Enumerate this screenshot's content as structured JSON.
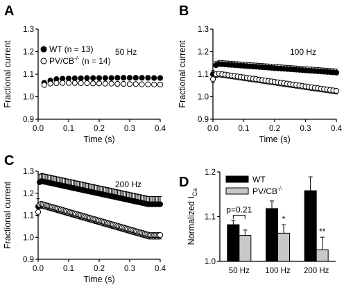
{
  "figure": {
    "background": "#ffffff",
    "panel_letters": [
      "A",
      "B",
      "C",
      "D"
    ]
  },
  "chart_data": [
    {
      "panel": "A",
      "type": "scatter",
      "annotation": "50 Hz",
      "xlabel": "Time (s)",
      "ylabel": "Fractional current",
      "xlim": [
        0.0,
        0.4
      ],
      "ylim": [
        0.9,
        1.3
      ],
      "xticks": [
        "0.0",
        "0.1",
        "0.2",
        "0.3",
        "0.4"
      ],
      "yticks": [
        "0.9",
        "1.0",
        "1.1",
        "1.2",
        "1.3"
      ],
      "legend": [
        {
          "marker": "filled",
          "label": "WT (n = 13)",
          "base": "WT (n = 13)"
        },
        {
          "marker": "open",
          "label": "PV/CB-/- (n = 14)",
          "base": "PV/CB",
          "sup": "-/-",
          "tail": " (n = 14)"
        }
      ],
      "series": [
        {
          "name": "WT (n = 13)",
          "marker": "filled",
          "color": "#000000",
          "x": [
            0.02,
            0.04,
            0.06,
            0.08,
            0.1,
            0.12,
            0.14,
            0.16,
            0.18,
            0.2,
            0.22,
            0.24,
            0.26,
            0.28,
            0.3,
            0.32,
            0.34,
            0.36,
            0.38,
            0.4
          ],
          "y": [
            1.062,
            1.072,
            1.078,
            1.08,
            1.081,
            1.082,
            1.082,
            1.083,
            1.083,
            1.083,
            1.083,
            1.083,
            1.084,
            1.084,
            1.084,
            1.084,
            1.084,
            1.084,
            1.083,
            1.083
          ],
          "err": 0.008
        },
        {
          "name": "PV/CB-/- (n = 14)",
          "marker": "open",
          "color": "#000000",
          "x": [
            0.02,
            0.04,
            0.06,
            0.08,
            0.1,
            0.12,
            0.14,
            0.16,
            0.18,
            0.2,
            0.22,
            0.24,
            0.26,
            0.28,
            0.3,
            0.32,
            0.34,
            0.36,
            0.38,
            0.4
          ],
          "y": [
            1.052,
            1.058,
            1.06,
            1.061,
            1.061,
            1.061,
            1.06,
            1.06,
            1.059,
            1.059,
            1.058,
            1.058,
            1.057,
            1.057,
            1.056,
            1.056,
            1.055,
            1.055,
            1.054,
            1.054
          ],
          "err": 0.007
        }
      ]
    },
    {
      "panel": "B",
      "type": "scatter",
      "annotation": "100 Hz",
      "xlabel": "Time (s)",
      "ylabel": "Fractional current",
      "xlim": [
        0.0,
        0.4
      ],
      "ylim": [
        0.9,
        1.3
      ],
      "xticks": [
        "0.0",
        "0.1",
        "0.2",
        "0.3",
        "0.4"
      ],
      "yticks": [
        "0.9",
        "1.0",
        "1.1",
        "1.2",
        "1.3"
      ],
      "series": [
        {
          "name": "WT (n = 13)",
          "marker": "filled",
          "color": "#000000",
          "x": [
            0.0,
            0.01,
            0.02,
            0.03,
            0.04,
            0.05,
            0.06,
            0.07,
            0.08,
            0.09,
            0.1,
            0.11,
            0.12,
            0.13,
            0.14,
            0.15,
            0.16,
            0.17,
            0.18,
            0.19,
            0.2,
            0.21,
            0.22,
            0.23,
            0.24,
            0.25,
            0.26,
            0.27,
            0.28,
            0.29,
            0.3,
            0.31,
            0.32,
            0.33,
            0.34,
            0.35,
            0.36,
            0.37,
            0.38,
            0.39,
            0.4
          ],
          "y": [
            1.1,
            1.14,
            1.145,
            1.144,
            1.143,
            1.142,
            1.141,
            1.14,
            1.139,
            1.138,
            1.137,
            1.136,
            1.135,
            1.134,
            1.133,
            1.132,
            1.131,
            1.13,
            1.129,
            1.128,
            1.127,
            1.126,
            1.125,
            1.124,
            1.123,
            1.122,
            1.121,
            1.12,
            1.119,
            1.118,
            1.117,
            1.116,
            1.115,
            1.114,
            1.113,
            1.112,
            1.111,
            1.11,
            1.109,
            1.108,
            1.107
          ],
          "err": 0.016
        },
        {
          "name": "PV/CB-/- (n = 14)",
          "marker": "open",
          "color": "#000000",
          "x": [
            0.0,
            0.01,
            0.02,
            0.03,
            0.04,
            0.05,
            0.06,
            0.07,
            0.08,
            0.09,
            0.1,
            0.11,
            0.12,
            0.13,
            0.14,
            0.15,
            0.16,
            0.17,
            0.18,
            0.19,
            0.2,
            0.21,
            0.22,
            0.23,
            0.24,
            0.25,
            0.26,
            0.27,
            0.28,
            0.29,
            0.3,
            0.31,
            0.32,
            0.33,
            0.34,
            0.35,
            0.36,
            0.37,
            0.38,
            0.39,
            0.4
          ],
          "y": [
            1.078,
            1.1,
            1.102,
            1.1,
            1.098,
            1.096,
            1.094,
            1.092,
            1.09,
            1.088,
            1.086,
            1.084,
            1.082,
            1.08,
            1.078,
            1.076,
            1.074,
            1.072,
            1.07,
            1.068,
            1.066,
            1.064,
            1.062,
            1.06,
            1.058,
            1.056,
            1.054,
            1.052,
            1.05,
            1.048,
            1.046,
            1.044,
            1.042,
            1.04,
            1.038,
            1.036,
            1.034,
            1.032,
            1.03,
            1.028,
            1.026
          ],
          "err": 0.014
        }
      ]
    },
    {
      "panel": "C",
      "type": "scatter",
      "annotation": "200 Hz",
      "xlabel": "Time (s)",
      "ylabel": "Fractional current",
      "xlim": [
        0.0,
        0.4
      ],
      "ylim": [
        0.9,
        1.3
      ],
      "xticks": [
        "0.0",
        "0.1",
        "0.2",
        "0.3",
        "0.4"
      ],
      "yticks": [
        "0.9",
        "1.0",
        "1.1",
        "1.2",
        "1.3"
      ],
      "series": [
        {
          "name": "WT (n = 13)",
          "marker": "filled",
          "color": "#000000",
          "x": [
            0.0,
            0.005,
            0.01,
            0.015,
            0.02,
            0.025,
            0.03,
            0.035,
            0.04,
            0.045,
            0.05,
            0.055,
            0.06,
            0.065,
            0.07,
            0.075,
            0.08,
            0.085,
            0.09,
            0.095,
            0.1,
            0.105,
            0.11,
            0.115,
            0.12,
            0.125,
            0.13,
            0.135,
            0.14,
            0.145,
            0.15,
            0.155,
            0.16,
            0.165,
            0.17,
            0.175,
            0.18,
            0.185,
            0.19,
            0.195,
            0.2,
            0.205,
            0.21,
            0.215,
            0.22,
            0.225,
            0.23,
            0.235,
            0.24,
            0.245,
            0.25,
            0.255,
            0.26,
            0.265,
            0.27,
            0.275,
            0.28,
            0.285,
            0.29,
            0.295,
            0.3,
            0.305,
            0.31,
            0.315,
            0.32,
            0.325,
            0.33,
            0.335,
            0.34,
            0.345,
            0.35,
            0.355,
            0.36,
            0.365,
            0.37,
            0.375,
            0.38,
            0.385,
            0.39,
            0.395,
            0.4
          ],
          "y": [
            1.14,
            1.25,
            1.255,
            1.254,
            1.252,
            1.251,
            1.249,
            1.248,
            1.246,
            1.245,
            1.243,
            1.242,
            1.24,
            1.239,
            1.237,
            1.236,
            1.234,
            1.233,
            1.231,
            1.23,
            1.228,
            1.227,
            1.225,
            1.224,
            1.222,
            1.221,
            1.219,
            1.218,
            1.216,
            1.215,
            1.213,
            1.212,
            1.21,
            1.209,
            1.207,
            1.206,
            1.204,
            1.203,
            1.201,
            1.2,
            1.198,
            1.197,
            1.195,
            1.194,
            1.192,
            1.191,
            1.189,
            1.188,
            1.186,
            1.185,
            1.183,
            1.182,
            1.18,
            1.179,
            1.177,
            1.176,
            1.174,
            1.173,
            1.171,
            1.17,
            1.168,
            1.167,
            1.165,
            1.164,
            1.162,
            1.161,
            1.159,
            1.158,
            1.156,
            1.155,
            1.153,
            1.152,
            1.15,
            1.15,
            1.15,
            1.15,
            1.15,
            1.15,
            1.15,
            1.15,
            1.15
          ],
          "err": 0.035
        },
        {
          "name": "PV/CB-/- (n = 14)",
          "marker": "open",
          "color": "#000000",
          "x": [
            0.0,
            0.005,
            0.01,
            0.015,
            0.02,
            0.025,
            0.03,
            0.035,
            0.04,
            0.045,
            0.05,
            0.055,
            0.06,
            0.065,
            0.07,
            0.075,
            0.08,
            0.085,
            0.09,
            0.095,
            0.1,
            0.105,
            0.11,
            0.115,
            0.12,
            0.125,
            0.13,
            0.135,
            0.14,
            0.145,
            0.15,
            0.155,
            0.16,
            0.165,
            0.17,
            0.175,
            0.18,
            0.185,
            0.19,
            0.195,
            0.2,
            0.205,
            0.21,
            0.215,
            0.22,
            0.225,
            0.23,
            0.235,
            0.24,
            0.245,
            0.25,
            0.255,
            0.26,
            0.265,
            0.27,
            0.275,
            0.28,
            0.285,
            0.29,
            0.295,
            0.3,
            0.305,
            0.31,
            0.315,
            0.32,
            0.325,
            0.33,
            0.335,
            0.34,
            0.345,
            0.35,
            0.355,
            0.36,
            0.365,
            0.37,
            0.375,
            0.38,
            0.385,
            0.39,
            0.395,
            0.4
          ],
          "y": [
            1.115,
            1.148,
            1.152,
            1.15,
            1.148,
            1.146,
            1.144,
            1.142,
            1.14,
            1.138,
            1.136,
            1.134,
            1.132,
            1.13,
            1.128,
            1.126,
            1.124,
            1.122,
            1.12,
            1.118,
            1.116,
            1.114,
            1.112,
            1.11,
            1.108,
            1.106,
            1.104,
            1.102,
            1.1,
            1.098,
            1.096,
            1.094,
            1.092,
            1.09,
            1.088,
            1.086,
            1.084,
            1.082,
            1.08,
            1.078,
            1.076,
            1.074,
            1.072,
            1.07,
            1.068,
            1.066,
            1.064,
            1.062,
            1.06,
            1.058,
            1.056,
            1.054,
            1.052,
            1.05,
            1.048,
            1.046,
            1.044,
            1.042,
            1.04,
            1.038,
            1.036,
            1.034,
            1.032,
            1.03,
            1.028,
            1.026,
            1.024,
            1.022,
            1.02,
            1.018,
            1.016,
            1.014,
            1.012,
            1.01,
            1.01,
            1.01,
            1.01,
            1.01,
            1.01,
            1.01,
            1.01
          ],
          "err": 0.018
        }
      ]
    },
    {
      "panel": "D",
      "type": "bar",
      "ylabel": "Normalized I",
      "ylabel_sub": "Ca",
      "categories": [
        "50 Hz",
        "100 Hz",
        "200 Hz"
      ],
      "ylim": [
        1.0,
        1.2
      ],
      "yticks": [
        "1.0",
        "1.1",
        "1.2"
      ],
      "legend": [
        {
          "label": "WT",
          "color": "#000000"
        },
        {
          "label": "PV/CB-/-",
          "base": "PV/CB",
          "sup": "-/-",
          "color": "#c8c8c8"
        }
      ],
      "series": [
        {
          "name": "WT",
          "color": "#000000",
          "values": [
            1.082,
            1.118,
            1.158
          ],
          "err": [
            0.01,
            0.017,
            0.031
          ]
        },
        {
          "name": "PV/CB-/-",
          "color": "#c8c8c8",
          "values": [
            1.058,
            1.063,
            1.026
          ],
          "err": [
            0.012,
            0.019,
            0.028
          ]
        }
      ],
      "annotations": [
        {
          "text": "p=0.21",
          "category": 0
        },
        {
          "text": "*",
          "category": 1
        },
        {
          "text": "**",
          "category": 2
        }
      ]
    }
  ]
}
